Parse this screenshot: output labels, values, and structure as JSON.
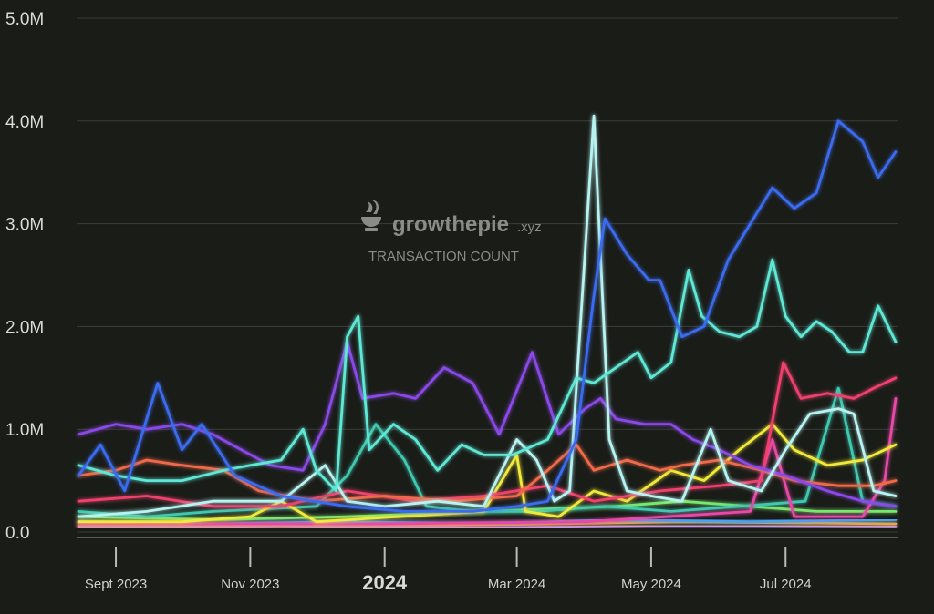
{
  "watermark": {
    "brand_main": "growthepie",
    "brand_suffix": ".xyz",
    "subtitle": "TRANSACTION COUNT"
  },
  "chart_data": {
    "type": "line",
    "title": "",
    "xlabel": "",
    "ylabel": "",
    "ylim": [
      0,
      5000000
    ],
    "xlim": [
      "2023-08-15",
      "2024-08-20"
    ],
    "grid": true,
    "legend": "none",
    "yticks": [
      {
        "value": 0,
        "label": "0.0"
      },
      {
        "value": 1000000,
        "label": "1.0M"
      },
      {
        "value": 2000000,
        "label": "2.0M"
      },
      {
        "value": 3000000,
        "label": "3.0M"
      },
      {
        "value": 4000000,
        "label": "4.0M"
      },
      {
        "value": 5000000,
        "label": "5.0M"
      }
    ],
    "xticks": [
      {
        "date": "2023-09-01",
        "label": "Sept 2023",
        "bold": false
      },
      {
        "date": "2023-11-01",
        "label": "Nov 2023",
        "bold": false
      },
      {
        "date": "2024-01-01",
        "label": "2024",
        "bold": true
      },
      {
        "date": "2024-03-01",
        "label": "Mar 2024",
        "bold": false
      },
      {
        "date": "2024-05-01",
        "label": "May 2024",
        "bold": false
      },
      {
        "date": "2024-07-01",
        "label": "Jul 2024",
        "bold": false
      }
    ],
    "series": [
      {
        "color": "#3b6cf0",
        "points": [
          [
            "2023-08-15",
            550000
          ],
          [
            "2023-08-25",
            850000
          ],
          [
            "2023-09-05",
            400000
          ],
          [
            "2023-09-20",
            1450000
          ],
          [
            "2023-10-01",
            800000
          ],
          [
            "2023-10-10",
            1050000
          ],
          [
            "2023-10-25",
            550000
          ],
          [
            "2023-11-15",
            350000
          ],
          [
            "2023-12-15",
            250000
          ],
          [
            "2024-01-10",
            200000
          ],
          [
            "2024-02-10",
            200000
          ],
          [
            "2024-03-01",
            250000
          ],
          [
            "2024-03-15",
            300000
          ],
          [
            "2024-03-28",
            900000
          ],
          [
            "2024-04-05",
            2300000
          ],
          [
            "2024-04-10",
            3050000
          ],
          [
            "2024-04-20",
            2700000
          ],
          [
            "2024-04-30",
            2450000
          ],
          [
            "2024-05-05",
            2450000
          ],
          [
            "2024-05-15",
            1900000
          ],
          [
            "2024-05-25",
            2000000
          ],
          [
            "2024-06-05",
            2650000
          ],
          [
            "2024-06-25",
            3350000
          ],
          [
            "2024-07-05",
            3150000
          ],
          [
            "2024-07-15",
            3300000
          ],
          [
            "2024-07-25",
            4000000
          ],
          [
            "2024-08-05",
            3800000
          ],
          [
            "2024-08-12",
            3450000
          ],
          [
            "2024-08-20",
            3700000
          ]
        ]
      },
      {
        "color": "#5ee8d6",
        "points": [
          [
            "2023-08-15",
            650000
          ],
          [
            "2023-09-01",
            550000
          ],
          [
            "2023-09-15",
            500000
          ],
          [
            "2023-10-01",
            500000
          ],
          [
            "2023-10-20",
            600000
          ],
          [
            "2023-11-01",
            650000
          ],
          [
            "2023-11-15",
            700000
          ],
          [
            "2023-11-25",
            1000000
          ],
          [
            "2023-12-01",
            600000
          ],
          [
            "2023-12-10",
            400000
          ],
          [
            "2023-12-15",
            1900000
          ],
          [
            "2023-12-20",
            2100000
          ],
          [
            "2023-12-25",
            800000
          ],
          [
            "2024-01-05",
            1050000
          ],
          [
            "2024-01-15",
            900000
          ],
          [
            "2024-01-25",
            600000
          ],
          [
            "2024-02-05",
            850000
          ],
          [
            "2024-02-15",
            750000
          ],
          [
            "2024-02-28",
            750000
          ],
          [
            "2024-03-15",
            900000
          ],
          [
            "2024-03-28",
            1500000
          ],
          [
            "2024-04-05",
            1450000
          ],
          [
            "2024-04-15",
            1600000
          ],
          [
            "2024-04-25",
            1750000
          ],
          [
            "2024-05-01",
            1500000
          ],
          [
            "2024-05-10",
            1650000
          ],
          [
            "2024-05-18",
            2550000
          ],
          [
            "2024-05-24",
            2100000
          ],
          [
            "2024-06-01",
            1950000
          ],
          [
            "2024-06-10",
            1900000
          ],
          [
            "2024-06-18",
            2000000
          ],
          [
            "2024-06-25",
            2650000
          ],
          [
            "2024-07-01",
            2100000
          ],
          [
            "2024-07-08",
            1900000
          ],
          [
            "2024-07-15",
            2050000
          ],
          [
            "2024-07-22",
            1950000
          ],
          [
            "2024-07-30",
            1750000
          ],
          [
            "2024-08-05",
            1750000
          ],
          [
            "2024-08-12",
            2200000
          ],
          [
            "2024-08-20",
            1850000
          ]
        ]
      },
      {
        "color": "#b7f3f1",
        "points": [
          [
            "2023-08-15",
            150000
          ],
          [
            "2023-09-15",
            200000
          ],
          [
            "2023-10-15",
            300000
          ],
          [
            "2023-11-15",
            300000
          ],
          [
            "2023-12-05",
            650000
          ],
          [
            "2023-12-15",
            300000
          ],
          [
            "2024-01-01",
            250000
          ],
          [
            "2024-01-25",
            300000
          ],
          [
            "2024-02-15",
            250000
          ],
          [
            "2024-03-01",
            900000
          ],
          [
            "2024-03-10",
            700000
          ],
          [
            "2024-03-18",
            300000
          ],
          [
            "2024-03-25",
            400000
          ],
          [
            "2024-04-05",
            4050000
          ],
          [
            "2024-04-12",
            900000
          ],
          [
            "2024-04-20",
            400000
          ],
          [
            "2024-05-01",
            350000
          ],
          [
            "2024-05-15",
            300000
          ],
          [
            "2024-05-28",
            1000000
          ],
          [
            "2024-06-05",
            500000
          ],
          [
            "2024-06-20",
            400000
          ],
          [
            "2024-07-01",
            800000
          ],
          [
            "2024-07-12",
            1150000
          ],
          [
            "2024-07-25",
            1200000
          ],
          [
            "2024-08-01",
            1150000
          ],
          [
            "2024-08-10",
            400000
          ],
          [
            "2024-08-20",
            350000
          ]
        ]
      },
      {
        "color": "#8a4ae8",
        "points": [
          [
            "2023-08-15",
            950000
          ],
          [
            "2023-09-01",
            1050000
          ],
          [
            "2023-09-15",
            1000000
          ],
          [
            "2023-10-01",
            1050000
          ],
          [
            "2023-10-15",
            950000
          ],
          [
            "2023-10-28",
            800000
          ],
          [
            "2023-11-10",
            650000
          ],
          [
            "2023-11-25",
            600000
          ],
          [
            "2023-12-05",
            1050000
          ],
          [
            "2023-12-15",
            1850000
          ],
          [
            "2023-12-22",
            1300000
          ],
          [
            "2024-01-05",
            1350000
          ],
          [
            "2024-01-15",
            1300000
          ],
          [
            "2024-01-28",
            1600000
          ],
          [
            "2024-02-10",
            1450000
          ],
          [
            "2024-02-22",
            950000
          ],
          [
            "2024-03-08",
            1750000
          ],
          [
            "2024-03-20",
            950000
          ],
          [
            "2024-04-01",
            1200000
          ],
          [
            "2024-04-08",
            1300000
          ],
          [
            "2024-04-15",
            1100000
          ],
          [
            "2024-04-28",
            1050000
          ],
          [
            "2024-05-10",
            1050000
          ],
          [
            "2024-05-20",
            900000
          ],
          [
            "2024-06-01",
            800000
          ],
          [
            "2024-06-15",
            650000
          ],
          [
            "2024-07-01",
            550000
          ],
          [
            "2024-07-20",
            400000
          ],
          [
            "2024-08-05",
            300000
          ],
          [
            "2024-08-20",
            250000
          ]
        ]
      },
      {
        "color": "#f06a4a",
        "points": [
          [
            "2023-08-15",
            550000
          ],
          [
            "2023-09-01",
            600000
          ],
          [
            "2023-09-15",
            700000
          ],
          [
            "2023-10-01",
            650000
          ],
          [
            "2023-10-20",
            600000
          ],
          [
            "2023-11-05",
            400000
          ],
          [
            "2023-12-01",
            300000
          ],
          [
            "2024-01-01",
            350000
          ],
          [
            "2024-02-01",
            300000
          ],
          [
            "2024-03-01",
            350000
          ],
          [
            "2024-03-15",
            600000
          ],
          [
            "2024-03-28",
            850000
          ],
          [
            "2024-04-05",
            600000
          ],
          [
            "2024-04-20",
            700000
          ],
          [
            "2024-05-05",
            600000
          ],
          [
            "2024-05-15",
            650000
          ],
          [
            "2024-06-01",
            700000
          ],
          [
            "2024-06-20",
            600000
          ],
          [
            "2024-07-05",
            500000
          ],
          [
            "2024-07-25",
            450000
          ],
          [
            "2024-08-10",
            450000
          ],
          [
            "2024-08-20",
            500000
          ]
        ]
      },
      {
        "color": "#f0406e",
        "points": [
          [
            "2023-08-15",
            300000
          ],
          [
            "2023-09-15",
            350000
          ],
          [
            "2023-10-15",
            250000
          ],
          [
            "2023-11-15",
            250000
          ],
          [
            "2023-12-15",
            400000
          ],
          [
            "2024-01-15",
            300000
          ],
          [
            "2024-02-15",
            350000
          ],
          [
            "2024-03-15",
            450000
          ],
          [
            "2024-04-05",
            300000
          ],
          [
            "2024-05-05",
            400000
          ],
          [
            "2024-06-01",
            450000
          ],
          [
            "2024-06-20",
            500000
          ],
          [
            "2024-06-30",
            1650000
          ],
          [
            "2024-07-08",
            1300000
          ],
          [
            "2024-07-20",
            1350000
          ],
          [
            "2024-08-01",
            1300000
          ],
          [
            "2024-08-10",
            1400000
          ],
          [
            "2024-08-20",
            1500000
          ]
        ]
      },
      {
        "color": "#f2ea3a",
        "points": [
          [
            "2023-08-15",
            100000
          ],
          [
            "2023-10-01",
            100000
          ],
          [
            "2023-11-01",
            150000
          ],
          [
            "2023-11-15",
            300000
          ],
          [
            "2023-12-01",
            100000
          ],
          [
            "2024-02-15",
            200000
          ],
          [
            "2024-03-01",
            750000
          ],
          [
            "2024-03-05",
            200000
          ],
          [
            "2024-03-20",
            150000
          ],
          [
            "2024-04-05",
            400000
          ],
          [
            "2024-04-20",
            300000
          ],
          [
            "2024-05-10",
            600000
          ],
          [
            "2024-05-25",
            500000
          ],
          [
            "2024-06-10",
            800000
          ],
          [
            "2024-06-25",
            1050000
          ],
          [
            "2024-07-05",
            800000
          ],
          [
            "2024-07-20",
            650000
          ],
          [
            "2024-08-05",
            700000
          ],
          [
            "2024-08-20",
            850000
          ]
        ]
      },
      {
        "color": "#e84aa8",
        "points": [
          [
            "2023-08-15",
            80000
          ],
          [
            "2024-01-01",
            80000
          ],
          [
            "2024-04-01",
            100000
          ],
          [
            "2024-06-15",
            200000
          ],
          [
            "2024-06-25",
            900000
          ],
          [
            "2024-07-05",
            150000
          ],
          [
            "2024-08-05",
            150000
          ],
          [
            "2024-08-15",
            500000
          ],
          [
            "2024-08-20",
            1300000
          ]
        ]
      },
      {
        "color": "#3fc9b0",
        "points": [
          [
            "2023-08-15",
            200000
          ],
          [
            "2023-09-15",
            150000
          ],
          [
            "2023-10-15",
            200000
          ],
          [
            "2023-12-01",
            250000
          ],
          [
            "2023-12-15",
            550000
          ],
          [
            "2023-12-28",
            1050000
          ],
          [
            "2024-01-10",
            700000
          ],
          [
            "2024-01-20",
            250000
          ],
          [
            "2024-02-10",
            200000
          ],
          [
            "2024-03-10",
            200000
          ],
          [
            "2024-04-10",
            250000
          ],
          [
            "2024-05-10",
            200000
          ],
          [
            "2024-06-10",
            250000
          ],
          [
            "2024-07-10",
            300000
          ],
          [
            "2024-07-25",
            1400000
          ],
          [
            "2024-08-05",
            300000
          ],
          [
            "2024-08-20",
            250000
          ]
        ]
      },
      {
        "color": "#7ae86e",
        "points": [
          [
            "2023-08-15",
            150000
          ],
          [
            "2023-10-15",
            120000
          ],
          [
            "2023-12-15",
            150000
          ],
          [
            "2024-02-15",
            200000
          ],
          [
            "2024-04-15",
            250000
          ],
          [
            "2024-05-15",
            300000
          ],
          [
            "2024-06-15",
            250000
          ],
          [
            "2024-07-15",
            200000
          ],
          [
            "2024-08-20",
            200000
          ]
        ]
      },
      {
        "color": "#4aa3f0",
        "points": [
          [
            "2023-08-15",
            100000
          ],
          [
            "2023-10-15",
            80000
          ],
          [
            "2023-12-15",
            100000
          ],
          [
            "2024-02-15",
            80000
          ],
          [
            "2024-04-15",
            120000
          ],
          [
            "2024-06-15",
            100000
          ],
          [
            "2024-08-20",
            120000
          ]
        ]
      },
      {
        "color": "#f0a640",
        "points": [
          [
            "2023-08-15",
            60000
          ],
          [
            "2023-11-15",
            60000
          ],
          [
            "2024-02-15",
            70000
          ],
          [
            "2024-05-15",
            100000
          ],
          [
            "2024-08-20",
            80000
          ]
        ]
      },
      {
        "color": "#c49af0",
        "points": [
          [
            "2023-08-15",
            40000
          ],
          [
            "2023-11-15",
            50000
          ],
          [
            "2024-02-15",
            40000
          ],
          [
            "2024-05-15",
            60000
          ],
          [
            "2024-08-20",
            50000
          ]
        ]
      }
    ]
  }
}
